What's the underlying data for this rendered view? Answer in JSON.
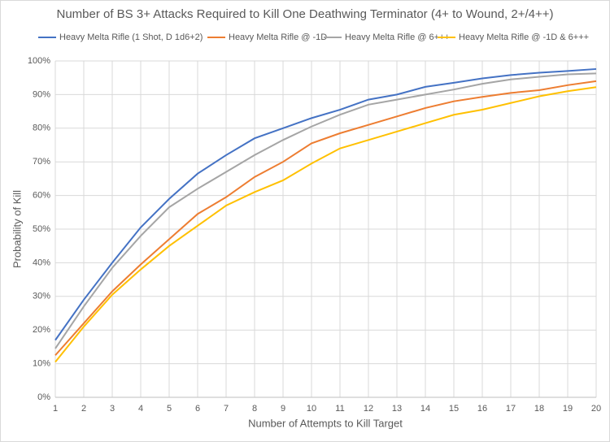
{
  "chart_data": {
    "type": "line",
    "title": "Number of BS 3+ Attacks Required to Kill One Deathwing Terminator (4+ to Wound, 2+/4++)",
    "x_label": "Number of Attempts to Kill Target",
    "y_label": "Probability of Kill",
    "x": [
      1,
      2,
      3,
      4,
      5,
      6,
      7,
      8,
      9,
      10,
      11,
      12,
      13,
      14,
      15,
      16,
      17,
      18,
      19,
      20
    ],
    "xlim": [
      1,
      20
    ],
    "xticks": [
      1,
      2,
      3,
      4,
      5,
      6,
      7,
      8,
      9,
      10,
      11,
      12,
      13,
      14,
      15,
      16,
      17,
      18,
      19,
      20
    ],
    "ylim": [
      0,
      100
    ],
    "yticks": [
      {
        "value": 0,
        "label": "0%"
      },
      {
        "value": 10,
        "label": "10%"
      },
      {
        "value": 20,
        "label": "20%"
      },
      {
        "value": 30,
        "label": "30%"
      },
      {
        "value": 40,
        "label": "40%"
      },
      {
        "value": 50,
        "label": "50%"
      },
      {
        "value": 60,
        "label": "60%"
      },
      {
        "value": 70,
        "label": "70%"
      },
      {
        "value": 80,
        "label": "80%"
      },
      {
        "value": 90,
        "label": "90%"
      },
      {
        "value": 100,
        "label": "100%"
      }
    ],
    "grid": true,
    "legend": "top",
    "series": [
      {
        "name": "Heavy Melta Rifle (1 Shot, D 1d6+2)",
        "color": "#4472c4",
        "values": [
          17,
          29,
          40,
          50.5,
          59,
          66.5,
          72,
          77,
          80,
          83,
          85.5,
          88.5,
          90,
          92.3,
          93.5,
          94.8,
          95.8,
          96.5,
          97,
          97.6
        ]
      },
      {
        "name": "Heavy Melta Rifle @ -1D",
        "color": "#ed7d31",
        "values": [
          12.5,
          22,
          31.5,
          39.5,
          47,
          54.5,
          59.5,
          65.5,
          70,
          75.5,
          78.5,
          81,
          83.5,
          86,
          88,
          89.3,
          90.5,
          91.3,
          92.8,
          94
        ]
      },
      {
        "name": "Heavy Melta Rifle @ 6+++",
        "color": "#a5a5a5",
        "values": [
          14.5,
          27,
          38.5,
          48,
          56.5,
          62,
          67,
          72,
          76.5,
          80.5,
          84,
          87,
          88.5,
          90,
          91.5,
          93.2,
          94.5,
          95.3,
          96,
          96.3
        ]
      },
      {
        "name": "Heavy Melta Rifle @ -1D & 6+++",
        "color": "#ffc000",
        "values": [
          10.5,
          21,
          30.5,
          38,
          45,
          51,
          57,
          61,
          64.5,
          69.5,
          74,
          76.5,
          79,
          81.5,
          84,
          85.5,
          87.5,
          89.5,
          91,
          92.2
        ]
      }
    ]
  }
}
